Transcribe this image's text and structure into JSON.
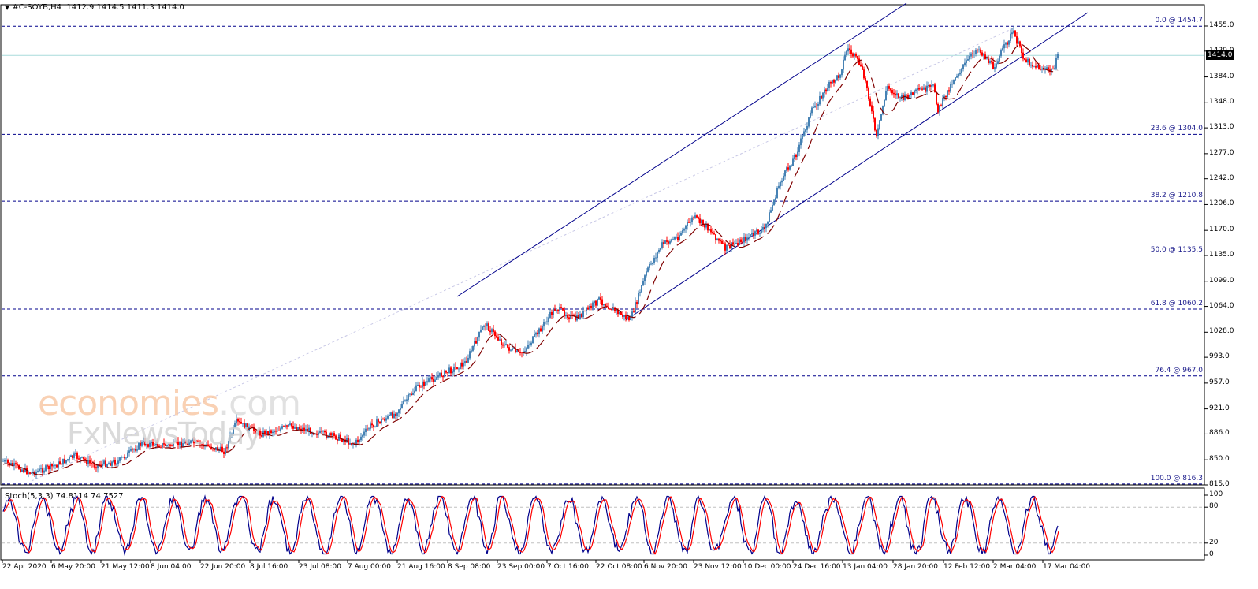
{
  "header": {
    "symbol": "#C-SOYB,H4",
    "ohlc": "1412.9 1414.5 1411.3 1414.0",
    "arrow": "▼"
  },
  "stoch_header": "Stoch(5,3,3) 74.8114 74.7527",
  "current_price": "1414.0",
  "watermark": {
    "line1_main": "economies",
    "line1_suffix": ".com",
    "line2": "FxNewsToday"
  },
  "colors": {
    "bull": "#4682b4",
    "bear": "#ff0000",
    "ma": "#800000",
    "channel": "#00008b",
    "fib": "#00008b",
    "current": "#a8dcdc",
    "stoch_main": "#00008b",
    "stoch_signal": "#ff0000"
  },
  "chart_data": {
    "type": "candlestick",
    "title": "#C-SOYB,H4",
    "ohlc_last": {
      "open": 1412.9,
      "high": 1414.5,
      "low": 1411.3,
      "close": 1414.0
    },
    "ylim": [
      815,
      1470
    ],
    "y_ticks": [
      "1455.0",
      "1420.0",
      "1384.0",
      "1348.0",
      "1313.0",
      "1277.0",
      "1242.0",
      "1206.0",
      "1170.0",
      "1135.0",
      "1099.0",
      "1064.0",
      "1028.0",
      "993.0",
      "957.0",
      "921.0",
      "886.0",
      "850.0",
      "815.0"
    ],
    "x_ticks": [
      "22 Apr 2020",
      "6 May 20:00",
      "21 May 12:00",
      "8 Jun 04:00",
      "22 Jun 20:00",
      "8 Jul 16:00",
      "23 Jul 08:00",
      "7 Aug 00:00",
      "21 Aug 16:00",
      "8 Sep 08:00",
      "23 Sep 00:00",
      "7 Oct 16:00",
      "22 Oct 08:00",
      "6 Nov 20:00",
      "23 Nov 12:00",
      "10 Dec 00:00",
      "24 Dec 16:00",
      "13 Jan 04:00",
      "28 Jan 20:00",
      "12 Feb 12:00",
      "2 Mar 04:00",
      "17 Mar 04:00"
    ],
    "fibonacci": [
      {
        "level": "0.0",
        "price": 1454.7,
        "label": "0.0 @ 1454.7"
      },
      {
        "level": "23.6",
        "price": 1304.0,
        "label": "23.6 @ 1304.0"
      },
      {
        "level": "38.2",
        "price": 1210.8,
        "label": "38.2 @ 1210.8"
      },
      {
        "level": "50.0",
        "price": 1135.5,
        "label": "50.0 @ 1135.5"
      },
      {
        "level": "61.8",
        "price": 1060.2,
        "label": "61.8 @ 1060.2"
      },
      {
        "level": "76.4",
        "price": 967.0,
        "label": "76.4 @ 967.0"
      },
      {
        "level": "100.0",
        "price": 816.3,
        "label": "100.0 @ 816.3"
      }
    ],
    "approx_close_path": [
      {
        "x": "22 Apr 2020",
        "y": 842
      },
      {
        "x": "6 May 20:00",
        "y": 850
      },
      {
        "x": "21 May 12:00",
        "y": 850
      },
      {
        "x": "8 Jun 04:00",
        "y": 872
      },
      {
        "x": "22 Jun 20:00",
        "y": 868
      },
      {
        "x": "8 Jul 16:00",
        "y": 892
      },
      {
        "x": "23 Jul 08:00",
        "y": 895
      },
      {
        "x": "7 Aug 00:00",
        "y": 880
      },
      {
        "x": "21 Aug 16:00",
        "y": 920
      },
      {
        "x": "8 Sep 08:00",
        "y": 1010
      },
      {
        "x": "23 Sep 00:00",
        "y": 1000
      },
      {
        "x": "7 Oct 16:00",
        "y": 1060
      },
      {
        "x": "22 Oct 08:00",
        "y": 1048
      },
      {
        "x": "6 Nov 20:00",
        "y": 1150
      },
      {
        "x": "23 Nov 12:00",
        "y": 1165
      },
      {
        "x": "10 Dec 00:00",
        "y": 1170
      },
      {
        "x": "24 Dec 16:00",
        "y": 1300
      },
      {
        "x": "13 Jan 04:00",
        "y": 1420
      },
      {
        "x": "28 Jan 20:00",
        "y": 1355
      },
      {
        "x": "12 Feb 12:00",
        "y": 1390
      },
      {
        "x": "2 Mar 04:00",
        "y": 1420
      },
      {
        "x": "17 Mar 04:00",
        "y": 1414
      }
    ],
    "indicator": {
      "name": "Stoch(5,3,3)",
      "main": 74.8114,
      "signal": 74.7527,
      "levels": [
        80,
        20
      ],
      "ylim": [
        0,
        100
      ],
      "y_ticks": [
        "100",
        "80",
        "20",
        "0"
      ]
    },
    "channel": {
      "upper": {
        "from": [
          580,
          376
        ],
        "to": [
          1150,
          4
        ]
      },
      "lower": {
        "from": [
          794,
          406
        ],
        "to": [
          1380,
          16
        ]
      }
    }
  }
}
